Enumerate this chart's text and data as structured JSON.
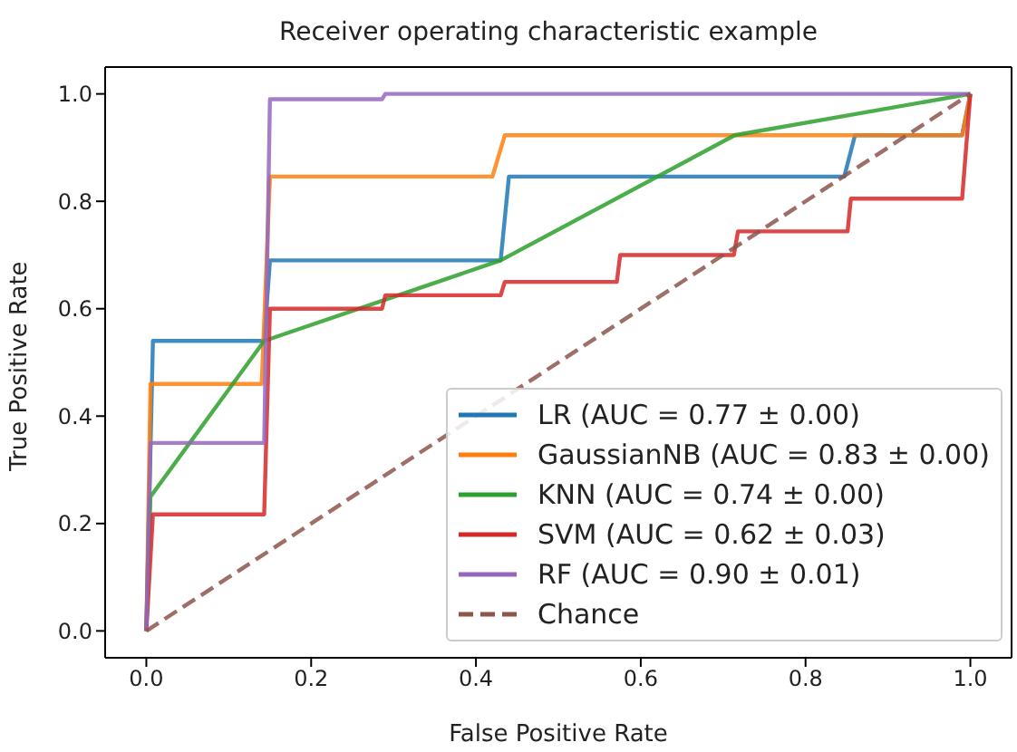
{
  "chart_data": {
    "type": "line",
    "title": "Receiver operating characteristic example",
    "xlabel": "False Positive Rate",
    "ylabel": "True Positive Rate",
    "xlim": [
      -0.05,
      1.05
    ],
    "ylim": [
      -0.05,
      1.05
    ],
    "xticks": [
      {
        "value": 0,
        "label": "0.0"
      },
      {
        "value": 0.2,
        "label": "0.2"
      },
      {
        "value": 0.4,
        "label": "0.4"
      },
      {
        "value": 0.6,
        "label": "0.6"
      },
      {
        "value": 0.8,
        "label": "0.8"
      },
      {
        "value": 1,
        "label": "1.0"
      }
    ],
    "yticks": [
      {
        "value": 0,
        "label": "0.0"
      },
      {
        "value": 0.2,
        "label": "0.2"
      },
      {
        "value": 0.4,
        "label": "0.4"
      },
      {
        "value": 0.6,
        "label": "0.6"
      },
      {
        "value": 0.8,
        "label": "0.8"
      },
      {
        "value": 1,
        "label": "1.0"
      }
    ],
    "grid": false,
    "legend": "bottom right",
    "marker": "none",
    "line_style": "solid",
    "series": [
      {
        "name": "LR (AUC = 0.77 ± 0.00)",
        "color": "#1f77b4",
        "x": [
          0,
          0.008,
          0.143,
          0.15,
          0.43,
          0.44,
          0.847,
          0.86,
          0.99,
          1
        ],
        "values": [
          0,
          0.54,
          0.54,
          0.69,
          0.69,
          0.846,
          0.846,
          0.923,
          0.923,
          1
        ]
      },
      {
        "name": "GaussianNB (AUC = 0.83 ± 0.00)",
        "color": "#ff7f0e",
        "x": [
          0,
          0.005,
          0.14,
          0.15,
          0.42,
          0.435,
          0.99,
          1
        ],
        "values": [
          0,
          0.46,
          0.46,
          0.846,
          0.846,
          0.923,
          0.923,
          1
        ]
      },
      {
        "name": "KNN (AUC = 0.74 ± 0.00)",
        "color": "#2ca02c",
        "x": [
          0,
          0.005,
          0.143,
          0.43,
          0.714,
          1
        ],
        "values": [
          0,
          0.25,
          0.54,
          0.69,
          0.923,
          1
        ]
      },
      {
        "name": "SVM (AUC = 0.62 ± 0.03)",
        "color": "#d62728",
        "x": [
          0,
          0.008,
          0.143,
          0.15,
          0.286,
          0.29,
          0.43,
          0.435,
          0.571,
          0.575,
          0.713,
          0.718,
          0.851,
          0.855,
          0.99,
          1
        ],
        "values": [
          0,
          0.217,
          0.217,
          0.6,
          0.6,
          0.625,
          0.625,
          0.65,
          0.65,
          0.7,
          0.7,
          0.744,
          0.744,
          0.805,
          0.805,
          1
        ]
      },
      {
        "name": "RF (AUC = 0.90 ± 0.01)",
        "color": "#9467bd",
        "x": [
          0,
          0.005,
          0.143,
          0.15,
          0.286,
          0.29,
          1
        ],
        "values": [
          0,
          0.35,
          0.35,
          0.99,
          0.99,
          1,
          1
        ]
      },
      {
        "name": "Chance",
        "color": "#8c564b",
        "line_style": "dashed",
        "x": [
          0,
          1
        ],
        "values": [
          0,
          1
        ]
      }
    ]
  }
}
